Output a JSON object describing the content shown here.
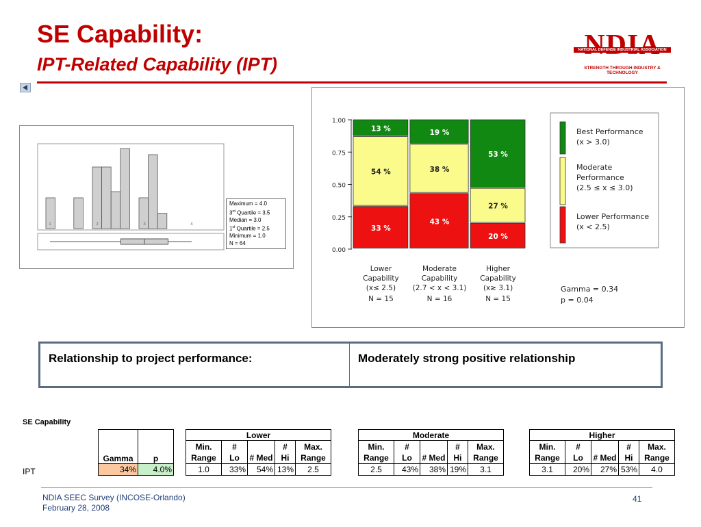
{
  "title": {
    "line1": "SE Capability:",
    "line2": "IPT-Related Capability (IPT)"
  },
  "logo": {
    "letters": "NDIA",
    "bar_text": "NATIONAL DEFENSE INDUSTRIAL ASSOCIATION",
    "tagline": "STRENGTH THROUGH INDUSTRY & TECHNOLOGY"
  },
  "histogram": {
    "bars": [
      1,
      0,
      0,
      1,
      0,
      2,
      2,
      1.2,
      2.6,
      0,
      1,
      2.4,
      0.5
    ],
    "ticks": [
      "1",
      "2",
      "3",
      "4"
    ],
    "boxplot": {
      "min": 1.0,
      "q1": 2.5,
      "median": 3.0,
      "q3": 3.5,
      "max": 4.0
    }
  },
  "stats": {
    "maximum": "Maximum = 4.0",
    "q3_prefix": "3",
    "q3_sup": "rd",
    "q3_rest": " Quartile = 3.5",
    "median": "Median = 3.0",
    "q1_prefix": "1",
    "q1_sup": "st",
    "q1_rest": " Quartile = 2.5",
    "minimum": "Minimum = 1.0",
    "n": "N = 64"
  },
  "chart_data": {
    "type": "bar",
    "stacked": true,
    "y_ticks": [
      "1.00",
      "0.75",
      "0.50",
      "0.25",
      "0.00"
    ],
    "ylim": [
      0,
      1
    ],
    "categories": [
      {
        "line1": "Lower",
        "line2": "Capability",
        "line3": "(x≤ 2.5)",
        "n": "N = 15",
        "width_weight": 15
      },
      {
        "line1": "Moderate",
        "line2": "Capability",
        "line3": "(2.7 < x < 3.1)",
        "n": "N = 16",
        "width_weight": 16
      },
      {
        "line1": "Higher",
        "line2": "Capability",
        "line3": "(x≥ 3.1)",
        "n": "N = 15",
        "width_weight": 15
      }
    ],
    "series": [
      {
        "name": "Lower Performance",
        "color": "#ee1111",
        "values": [
          0.33,
          0.43,
          0.2
        ],
        "labels": [
          "33 %",
          "43 %",
          "20 %"
        ]
      },
      {
        "name": "Moderate Performance",
        "color": "#fbfb8c",
        "values": [
          0.54,
          0.38,
          0.27
        ],
        "labels": [
          "54 %",
          "38 %",
          "27 %"
        ]
      },
      {
        "name": "Best Performance",
        "color": "#118811",
        "values": [
          0.13,
          0.19,
          0.53
        ],
        "labels": [
          "13 %",
          "19 %",
          "53 %"
        ]
      }
    ],
    "legend": [
      {
        "line1": "Best Performance",
        "line2": "(x > 3.0)",
        "line3": "",
        "color": "#118811"
      },
      {
        "line1": "Moderate",
        "line2": "Performance",
        "line3": "(2.5 ≤ x ≤ 3.0)",
        "color": "#fbfb8c"
      },
      {
        "line1": "Lower Performance",
        "line2": "(x < 2.5)",
        "line3": "",
        "color": "#ee1111"
      }
    ],
    "gamma": "Gamma = 0.34",
    "p": "p = 0.04"
  },
  "relationship": {
    "label": "Relationship to project performance:",
    "value": "Moderately strong positive relationship"
  },
  "data_table": {
    "section_label": "SE Capability",
    "row_label": "IPT",
    "gamma_header": "Gamma",
    "p_header": "p",
    "gamma_value": "34%",
    "p_value": "4.0%",
    "groups": [
      {
        "name": "Lower",
        "values": [
          "1.0",
          "33%",
          "54%",
          "13%",
          "2.5"
        ]
      },
      {
        "name": "Moderate",
        "values": [
          "2.5",
          "43%",
          "38%",
          "19%",
          "3.1"
        ]
      },
      {
        "name": "Higher",
        "values": [
          "3.1",
          "20%",
          "27%",
          "53%",
          "4.0"
        ]
      }
    ],
    "col_headers_top": [
      "Min.",
      "#",
      "",
      "#",
      "Max."
    ],
    "col_headers_bottom": [
      "Range",
      "Lo",
      "# Med",
      "Hi",
      "Range"
    ],
    "gamma_color": "#fbc8a0",
    "p_color": "#c8f0c8"
  },
  "footer": {
    "line1": "NDIA SEEC Survey (INCOSE-Orlando)",
    "line2": "February 28, 2008",
    "page": "41"
  }
}
